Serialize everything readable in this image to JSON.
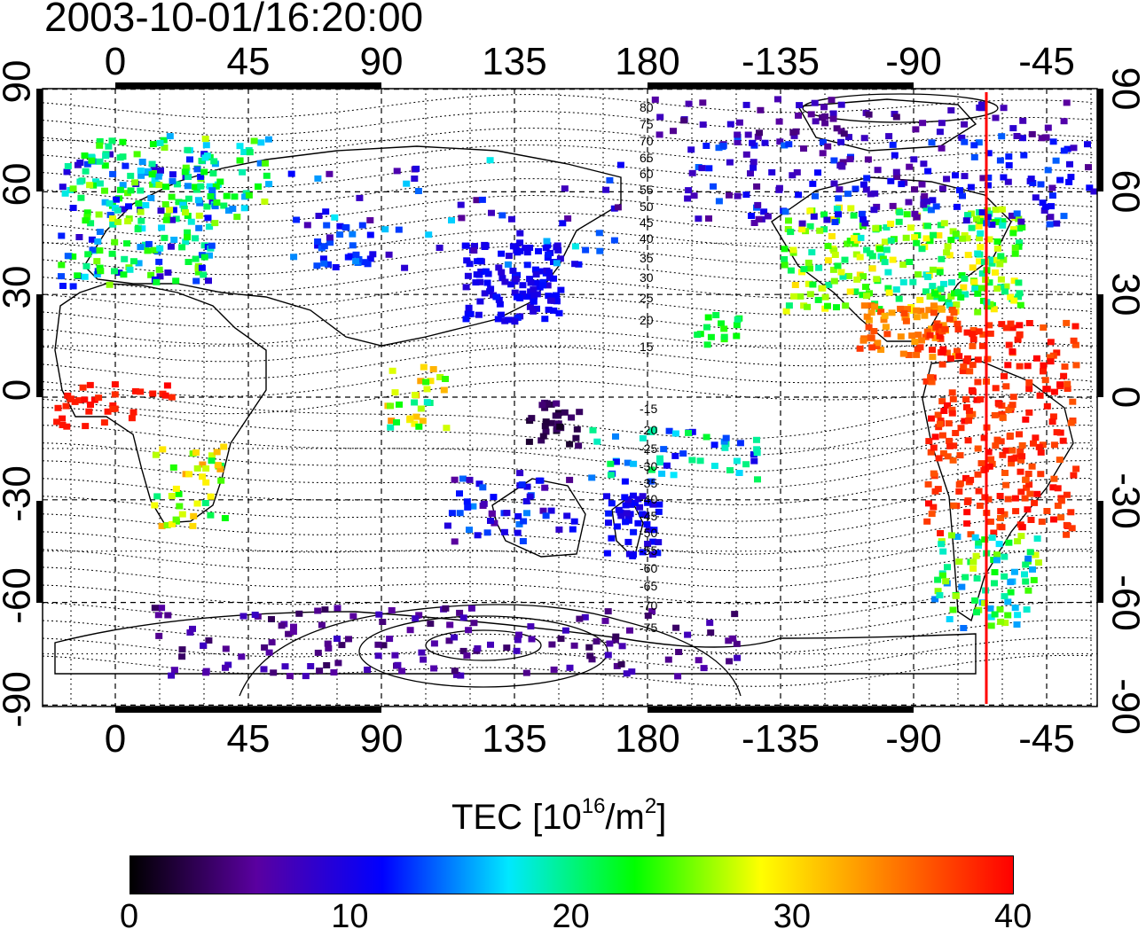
{
  "timestamp": "2003-10-01/16:20:00",
  "map": {
    "lon_top_labels": [
      "0",
      "45",
      "90",
      "135",
      "180",
      "-135",
      "-90",
      "-45"
    ],
    "lon_bottom_labels": [
      "0",
      "45",
      "90",
      "135",
      "180",
      "-135",
      "-90",
      "-45"
    ],
    "lat_left_labels": [
      "90",
      "60",
      "30",
      "0",
      "-30",
      "-60",
      "-90"
    ],
    "lat_right_labels": [
      "90",
      "60",
      "30",
      "0",
      "-30",
      "-60",
      "-90"
    ],
    "contour_labels_north": [
      "80",
      "75",
      "70",
      "65",
      "60",
      "55",
      "50",
      "45",
      "40",
      "35",
      "30",
      "25",
      "20",
      "15"
    ],
    "contour_labels_south": [
      "-15",
      "-20",
      "-25",
      "-30",
      "-35",
      "-40",
      "-45",
      "-50",
      "-55",
      "-60",
      "-65",
      "-70",
      "-75"
    ],
    "meridian_marker_lon": -70,
    "meridian_marker_color": "#ff0000"
  },
  "colorbar": {
    "title_main": "TEC  [10",
    "title_sup1": "16",
    "title_mid": "/m",
    "title_sup2": "2",
    "title_end": "]",
    "labels": [
      "0",
      "10",
      "20",
      "30",
      "40"
    ],
    "min": 0,
    "max": 40,
    "colors": [
      "#000000",
      "#5a00a0",
      "#0000ff",
      "#00e8ff",
      "#00ff00",
      "#ffff00",
      "#ff7f00",
      "#ff0000"
    ]
  }
}
